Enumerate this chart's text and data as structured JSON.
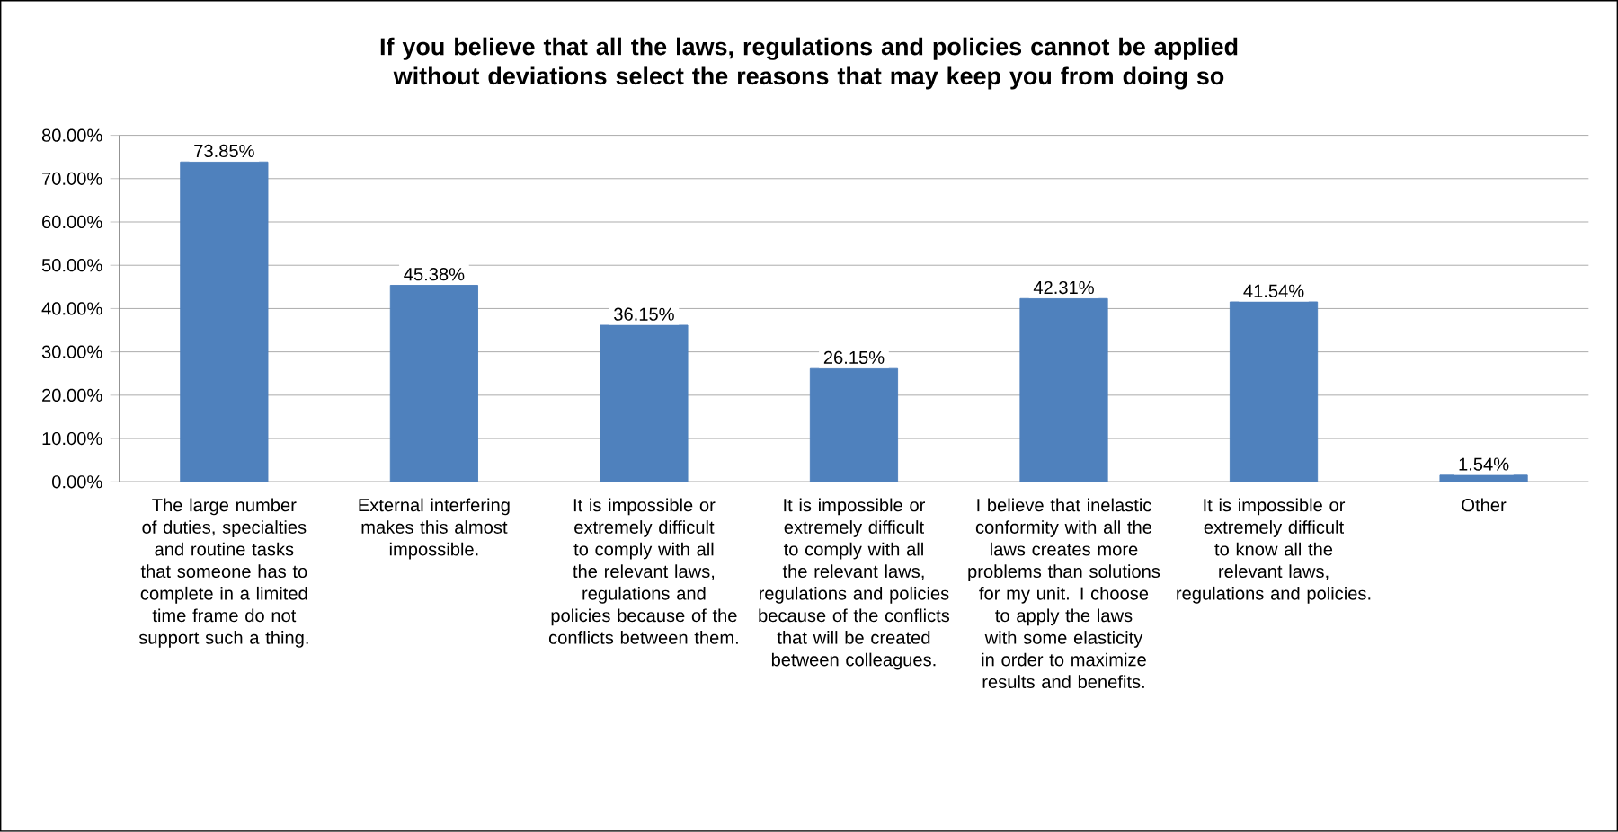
{
  "chart_data": {
    "type": "bar",
    "title": "If you believe that all the laws, regulations and policies cannot be applied without deviations select the reasons that may keep you from doing so",
    "categories": [
      "The large number of duties, specialties and routine tasks that someone has to complete in a limited time frame do not support such a thing.",
      "External interfering makes this almost impossible.",
      "It is impossible or extremely difficult to comply with all the relevant laws, regulations and policies because of the conflicts between them.",
      "It is impossible or extremely difficult to comply with all the relevant laws, regulations and policies because of the conflicts that will be created between colleagues.",
      "I believe that inelastic conformity with all the laws creates more problems than solutions for my unit. I choose to apply the laws with some elasticity in order to maximize results and benefits.",
      "It is impossible or extremely difficult to know all the relevant laws, regulations and policies.",
      "Other"
    ],
    "values": [
      73.85,
      45.38,
      36.15,
      26.15,
      42.31,
      41.54,
      1.54
    ],
    "value_labels": [
      "73.85%",
      "45.38%",
      "36.15%",
      "26.15%",
      "42.31%",
      "41.54%",
      "1.54%"
    ],
    "color": "#4f81bd",
    "ylim": [
      0,
      80
    ],
    "yticks": [
      {
        "value": 0,
        "label": "0.00%"
      },
      {
        "value": 10,
        "label": "10.00%"
      },
      {
        "value": 20,
        "label": "20.00%"
      },
      {
        "value": 30,
        "label": "30.00%"
      },
      {
        "value": 40,
        "label": "40.00%"
      },
      {
        "value": 50,
        "label": "50.00%"
      },
      {
        "value": 60,
        "label": "60.00%"
      },
      {
        "value": 70,
        "label": "70.00%"
      },
      {
        "value": 80,
        "label": "80.00%"
      }
    ],
    "grid": "y"
  }
}
